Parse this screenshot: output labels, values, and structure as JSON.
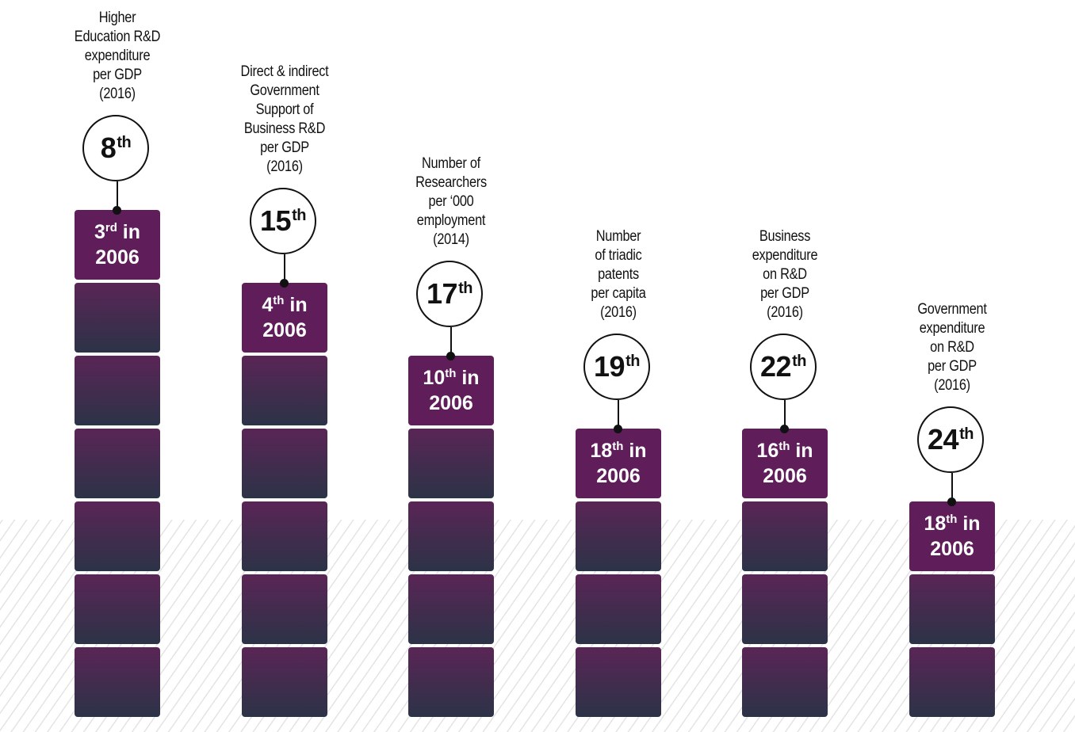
{
  "chart_data": {
    "type": "bar",
    "title": "",
    "categories": [
      "Higher Education R&D expenditure per GDP (2016)",
      "Direct & indirect Government Support of Business R&D per GDP (2016)",
      "Number of Researchers per ‘000 employment (2014)",
      "Number of triadic patents per capita (2016)",
      "Business expenditure on R&D per GDP (2016)",
      "Government expenditure on R&D per GDP (2016)"
    ],
    "items": [
      {
        "label_lines": [
          "Higher",
          "Education R&D",
          "expenditure",
          "per GDP",
          "(2016)"
        ],
        "rank_num": "8",
        "rank_suffix": "th",
        "prev_num": "3",
        "prev_suffix": "rd",
        "prev_in": " in",
        "prev_year": "2006",
        "rank_value": 8,
        "prev_rank_value": 3,
        "stack_blocks": 7
      },
      {
        "label_lines": [
          "Direct & indirect",
          "Government",
          "Support of",
          "Business R&D",
          "per GDP",
          "(2016)"
        ],
        "rank_num": "15",
        "rank_suffix": "th",
        "prev_num": "4",
        "prev_suffix": "th",
        "prev_in": " in",
        "prev_year": "2006",
        "rank_value": 15,
        "prev_rank_value": 4,
        "stack_blocks": 6
      },
      {
        "label_lines": [
          "Number of",
          "Researchers",
          "per ‘000",
          "employment",
          "(2014)"
        ],
        "rank_num": "17",
        "rank_suffix": "th",
        "prev_num": "10",
        "prev_suffix": "th",
        "prev_in": " in",
        "prev_year": "2006",
        "rank_value": 17,
        "prev_rank_value": 10,
        "stack_blocks": 5
      },
      {
        "label_lines": [
          "Number",
          "of triadic",
          "patents",
          "per capita",
          "(2016)"
        ],
        "rank_num": "19",
        "rank_suffix": "th",
        "prev_num": "18",
        "prev_suffix": "th",
        "prev_in": " in",
        "prev_year": "2006",
        "rank_value": 19,
        "prev_rank_value": 18,
        "stack_blocks": 4
      },
      {
        "label_lines": [
          "Business",
          "expenditure",
          "on R&D",
          "per GDP",
          "(2016)"
        ],
        "rank_num": "22",
        "rank_suffix": "th",
        "prev_num": "16",
        "prev_suffix": "th",
        "prev_in": " in",
        "prev_year": "2006",
        "rank_value": 22,
        "prev_rank_value": 16,
        "stack_blocks": 4
      },
      {
        "label_lines": [
          "Government",
          "expenditure",
          "on R&D",
          "per GDP",
          "(2016)"
        ],
        "rank_num": "24",
        "rank_suffix": "th",
        "prev_num": "18",
        "prev_suffix": "th",
        "prev_in": " in",
        "prev_year": "2006",
        "rank_value": 24,
        "prev_rank_value": 18,
        "stack_blocks": 3
      }
    ],
    "colors": {
      "top_block": "#5f1d5a",
      "block_top": "#5a2556",
      "block_bottom": "#2c3347",
      "text": "#111111"
    }
  }
}
